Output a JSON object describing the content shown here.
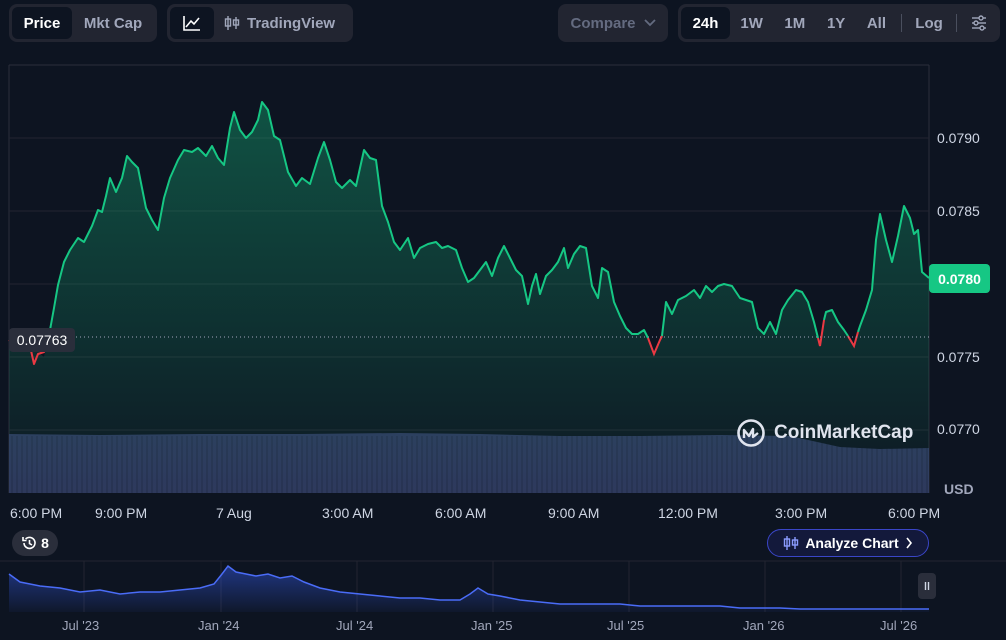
{
  "toolbar": {
    "price_label": "Price",
    "mktcap_label": "Mkt Cap",
    "tradingview_label": "TradingView",
    "compare_label": "Compare",
    "ranges": [
      "24h",
      "1W",
      "1M",
      "1Y",
      "All"
    ],
    "log_label": "Log"
  },
  "chart": {
    "current_price": "0.0780",
    "reference_price": "0.07763",
    "y_ticks": [
      "0.0790",
      "0.0785",
      "0.0780",
      "0.0775",
      "0.0770"
    ],
    "currency": "USD",
    "x_ticks": [
      "6:00 PM",
      "9:00 PM",
      "7 Aug",
      "3:00 AM",
      "6:00 AM",
      "9:00 AM",
      "12:00 PM",
      "3:00 PM",
      "6:00 PM"
    ],
    "watermark": "CoinMarketCap",
    "up_color": "#16c784",
    "down_color": "#ea3943"
  },
  "events": {
    "count": "8"
  },
  "analyze": {
    "label": "Analyze Chart"
  },
  "navigator": {
    "ticks": [
      "Jul '23",
      "Jan '24",
      "Jul '24",
      "Jan '25",
      "Jul '25",
      "Jan '26",
      "Jul '26"
    ]
  }
}
